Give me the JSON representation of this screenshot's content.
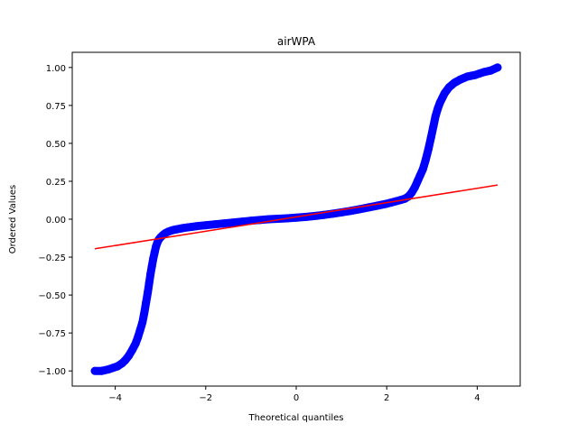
{
  "chart_data": {
    "type": "scatter",
    "title": "airWPA",
    "xlabel": "Theoretical quantiles",
    "ylabel": "Ordered Values",
    "xlim": [
      -4.95,
      4.95
    ],
    "ylim": [
      -1.1,
      1.1
    ],
    "xticks": [
      -4,
      -2,
      0,
      2,
      4
    ],
    "xtick_labels": [
      "−4",
      "−2",
      "0",
      "2",
      "4"
    ],
    "yticks": [
      -1.0,
      -0.75,
      -0.5,
      -0.25,
      0.0,
      0.25,
      0.5,
      0.75,
      1.0
    ],
    "ytick_labels": [
      "−1.00",
      "−0.75",
      "−0.50",
      "−0.25",
      "0.00",
      "0.25",
      "0.50",
      "0.75",
      "1.00"
    ],
    "grid": false,
    "legend": "none",
    "series": [
      {
        "kind": "scatter",
        "color": "#0000ff",
        "x": [
          -4.45,
          -4.3,
          -4.15,
          -4.05,
          -3.95,
          -3.85,
          -3.78,
          -3.7,
          -3.62,
          -3.55,
          -3.5,
          -3.45,
          -3.4,
          -3.36,
          -3.32,
          -3.28,
          -3.25,
          -3.22,
          -3.19,
          -3.16,
          -3.13,
          -3.1,
          -3.07,
          -3.04,
          -3.0,
          -2.96,
          -2.92,
          -2.88,
          -2.84,
          -2.8,
          -2.75,
          -2.7,
          -2.65,
          -2.6,
          -2.55,
          -2.5,
          -2.4,
          -2.3,
          -2.2,
          -2.0,
          -1.8,
          -1.6,
          -1.4,
          -1.2,
          -1.0,
          -0.8,
          -0.6,
          -0.4,
          -0.2,
          0.0,
          0.2,
          0.4,
          0.6,
          0.8,
          1.0,
          1.2,
          1.4,
          1.6,
          1.8,
          2.0,
          2.1,
          2.2,
          2.3,
          2.4,
          2.48,
          2.55,
          2.62,
          2.68,
          2.74,
          2.8,
          2.86,
          2.92,
          2.98,
          3.03,
          3.08,
          3.13,
          3.18,
          3.23,
          3.28,
          3.33,
          3.38,
          3.44,
          3.5,
          3.56,
          3.62,
          3.7,
          3.78,
          3.86,
          3.95,
          4.05,
          4.15,
          4.3,
          4.45
        ],
        "y": [
          -1.0,
          -1.0,
          -0.99,
          -0.98,
          -0.97,
          -0.95,
          -0.93,
          -0.9,
          -0.86,
          -0.82,
          -0.78,
          -0.73,
          -0.68,
          -0.62,
          -0.55,
          -0.48,
          -0.42,
          -0.36,
          -0.31,
          -0.26,
          -0.22,
          -0.18,
          -0.155,
          -0.135,
          -0.12,
          -0.108,
          -0.098,
          -0.09,
          -0.084,
          -0.079,
          -0.074,
          -0.07,
          -0.067,
          -0.064,
          -0.061,
          -0.058,
          -0.054,
          -0.05,
          -0.046,
          -0.04,
          -0.034,
          -0.028,
          -0.022,
          -0.016,
          -0.01,
          -0.005,
          0.0,
          0.003,
          0.006,
          0.01,
          0.015,
          0.021,
          0.028,
          0.036,
          0.045,
          0.055,
          0.066,
          0.078,
          0.09,
          0.102,
          0.11,
          0.118,
          0.126,
          0.135,
          0.15,
          0.175,
          0.21,
          0.25,
          0.29,
          0.33,
          0.39,
          0.46,
          0.54,
          0.61,
          0.68,
          0.73,
          0.77,
          0.8,
          0.83,
          0.85,
          0.87,
          0.885,
          0.9,
          0.91,
          0.92,
          0.93,
          0.94,
          0.945,
          0.95,
          0.96,
          0.97,
          0.98,
          1.0
        ]
      },
      {
        "kind": "line",
        "color": "#ff0000",
        "x": [
          -4.45,
          4.45
        ],
        "y": [
          -0.195,
          0.225
        ]
      }
    ]
  }
}
